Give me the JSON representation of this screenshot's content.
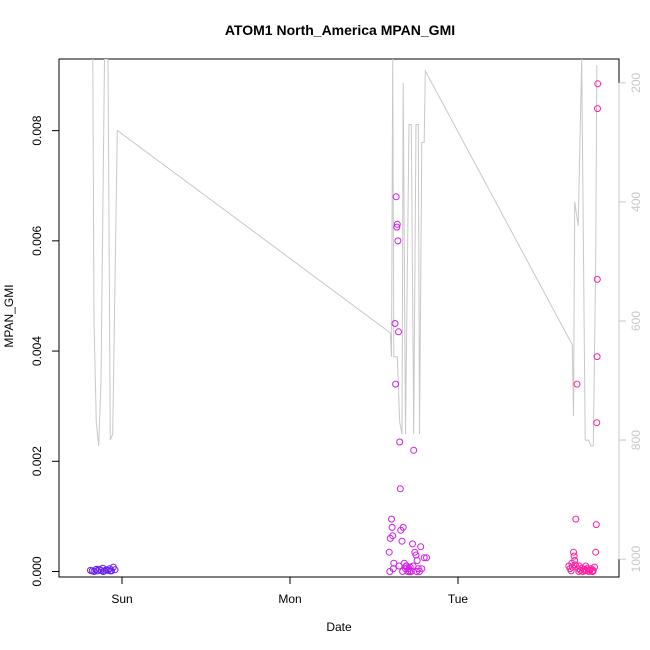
{
  "chart_data": {
    "type": "scatter",
    "title": "ATOM1 North_America MPAN_GMI",
    "xlabel": "Date",
    "ylabel": "MPAN_GMI",
    "x_ticks": [
      "Sun",
      "Mon",
      "Tue"
    ],
    "ylim": [
      -0.0001,
      0.0093
    ],
    "y_ticks": [
      "0.000",
      "0.002",
      "0.004",
      "0.006",
      "0.008"
    ],
    "y2_reverse": true,
    "y2lim": [
      1030,
      160
    ],
    "y2_ticks": [
      "200",
      "400",
      "600",
      "800",
      "1000"
    ],
    "grid": false,
    "colors": {
      "axis": "#000000",
      "secondary": "#c8c8c8",
      "line": "#c8c8c8",
      "group1": "#6a1ef0",
      "group2": "#d21ee6",
      "group3": "#ff1ea0"
    },
    "line_series": {
      "name": "",
      "axis": "secondary",
      "points": [
        [
          "Sat 19:50",
          160
        ],
        [
          "Sat 20:00",
          600
        ],
        [
          "Sat 20:20",
          770
        ],
        [
          "Sat 20:40",
          810
        ],
        [
          "Sat 21:00",
          700
        ],
        [
          "Sat 21:30",
          160
        ],
        [
          "Sat 22:00",
          160
        ],
        [
          "Sat 22:20",
          800
        ],
        [
          "Sat 22:40",
          790
        ],
        [
          "Sat 23:20",
          280
        ],
        [
          "Mon 14:20",
          620
        ],
        [
          "Mon 14:30",
          660
        ],
        [
          "Mon 14:40",
          160
        ],
        [
          "Mon 14:50",
          660
        ],
        [
          "Mon 15:20",
          660
        ],
        [
          "Mon 15:40",
          770
        ],
        [
          "Mon 16:00",
          790
        ],
        [
          "Mon 16:10",
          200
        ],
        [
          "Mon 16:30",
          790
        ],
        [
          "Mon 17:00",
          270
        ],
        [
          "Mon 17:20",
          270
        ],
        [
          "Mon 17:40",
          790
        ],
        [
          "Mon 18:00",
          270
        ],
        [
          "Mon 18:20",
          270
        ],
        [
          "Mon 18:30",
          790
        ],
        [
          "Mon 18:50",
          300
        ],
        [
          "Mon 19:10",
          300
        ],
        [
          "Mon 19:20",
          180
        ],
        [
          "Tue 16:20",
          640
        ],
        [
          "Tue 16:30",
          760
        ],
        [
          "Tue 16:40",
          400
        ],
        [
          "Tue 17:10",
          440
        ],
        [
          "Tue 17:40",
          160
        ],
        [
          "Tue 18:10",
          800
        ],
        [
          "Tue 18:40",
          800
        ],
        [
          "Tue 19:00",
          810
        ],
        [
          "Tue 19:20",
          810
        ],
        [
          "Tue 19:40",
          500
        ],
        [
          "Tue 19:50",
          170
        ]
      ]
    },
    "series": [
      {
        "name": "",
        "color": "#6a1ef0",
        "points": [
          [
            "Sat 19:30",
            2e-05
          ],
          [
            "Sat 19:45",
            1e-05
          ],
          [
            "Sat 20:00",
            0.0
          ],
          [
            "Sat 20:15",
            3e-05
          ],
          [
            "Sat 20:30",
            1e-05
          ],
          [
            "Sat 20:45",
            4e-05
          ],
          [
            "Sat 21:00",
            2e-05
          ],
          [
            "Sat 21:15",
            6e-05
          ],
          [
            "Sat 21:30",
            1e-05
          ],
          [
            "Sat 21:45",
            3e-05
          ],
          [
            "Sat 22:00",
            2e-05
          ],
          [
            "Sat 22:15",
            5e-05
          ],
          [
            "Sat 22:30",
            1e-05
          ],
          [
            "Sat 22:45",
            8e-05
          ],
          [
            "Sat 23:00",
            3e-05
          ],
          [
            "Sat 20:20",
            4e-05
          ],
          [
            "Sat 21:20",
            0.0
          ],
          [
            "Sat 22:20",
            1e-05
          ]
        ]
      },
      {
        "name": "",
        "color": "#d21ee6",
        "points": [
          [
            "Mon 14:10",
            0.00035
          ],
          [
            "Mon 14:20",
            0.0006
          ],
          [
            "Mon 14:30",
            0.00095
          ],
          [
            "Mon 14:35",
            0.0008
          ],
          [
            "Mon 14:40",
            0.00065
          ],
          [
            "Mon 14:50",
            0.00015
          ],
          [
            "Mon 15:00",
            0.0045
          ],
          [
            "Mon 15:05",
            0.0034
          ],
          [
            "Mon 15:10",
            0.0068
          ],
          [
            "Mon 15:15",
            0.00625
          ],
          [
            "Mon 15:20",
            0.0063
          ],
          [
            "Mon 15:25",
            0.006
          ],
          [
            "Mon 15:30",
            0.00435
          ],
          [
            "Mon 15:40",
            0.00235
          ],
          [
            "Mon 15:45",
            0.0015
          ],
          [
            "Mon 15:50",
            0.00075
          ],
          [
            "Mon 16:00",
            0.00055
          ],
          [
            "Mon 16:10",
            0.0008
          ],
          [
            "Mon 16:20",
            0.00015
          ],
          [
            "Mon 16:30",
            5e-05
          ],
          [
            "Mon 16:40",
            0.0001
          ],
          [
            "Mon 16:50",
            0.0
          ],
          [
            "Mon 17:00",
            5e-05
          ],
          [
            "Mon 17:10",
            8e-05
          ],
          [
            "Mon 17:20",
            0.0
          ],
          [
            "Mon 17:30",
            0.0005
          ],
          [
            "Mon 17:40",
            0.0022
          ],
          [
            "Mon 17:50",
            0.00035
          ],
          [
            "Mon 18:00",
            0.0003
          ],
          [
            "Mon 18:10",
            0.0002
          ],
          [
            "Mon 18:20",
            5e-05
          ],
          [
            "Mon 18:30",
            0.0
          ],
          [
            "Mon 18:40",
            0.00045
          ],
          [
            "Mon 18:50",
            5e-05
          ],
          [
            "Mon 19:10",
            0.00025
          ],
          [
            "Mon 19:30",
            0.00025
          ],
          [
            "Mon 14:15",
            0.0
          ],
          [
            "Mon 14:45",
            5e-05
          ],
          [
            "Mon 15:35",
            0.0001
          ],
          [
            "Mon 16:05",
            0.0
          ],
          [
            "Mon 16:35",
            0.0001
          ],
          [
            "Mon 17:05",
            0.0
          ],
          [
            "Mon 17:35",
            0.0001
          ],
          [
            "Mon 18:05",
            0.0
          ]
        ]
      },
      {
        "name": "",
        "color": "#ff1ea0",
        "points": [
          [
            "Tue 15:50",
            0.0001
          ],
          [
            "Tue 16:00",
            5e-05
          ],
          [
            "Tue 16:10",
            1e-05
          ],
          [
            "Tue 16:20",
            8e-05
          ],
          [
            "Tue 16:30",
            0.00035
          ],
          [
            "Tue 16:35",
            0.00028
          ],
          [
            "Tue 16:40",
            0.0002
          ],
          [
            "Tue 16:45",
            0.00012
          ],
          [
            "Tue 16:50",
            0.00095
          ],
          [
            "Tue 17:00",
            0.0034
          ],
          [
            "Tue 17:10",
            5e-05
          ],
          [
            "Tue 17:20",
            0.0001
          ],
          [
            "Tue 17:30",
            2e-05
          ],
          [
            "Tue 17:40",
            6e-05
          ],
          [
            "Tue 17:50",
            0.0
          ],
          [
            "Tue 18:00",
            4e-05
          ],
          [
            "Tue 18:10",
            1e-05
          ],
          [
            "Tue 18:20",
            3e-05
          ],
          [
            "Tue 18:30",
            6e-05
          ],
          [
            "Tue 18:40",
            0.0
          ],
          [
            "Tue 18:50",
            2e-05
          ],
          [
            "Tue 19:00",
            5e-05
          ],
          [
            "Tue 19:10",
            0.0
          ],
          [
            "Tue 19:20",
            2e-05
          ],
          [
            "Tue 19:30",
            8e-05
          ],
          [
            "Tue 19:40",
            0.00035
          ],
          [
            "Tue 19:45",
            0.00085
          ],
          [
            "Tue 19:50",
            0.0027
          ],
          [
            "Tue 19:52",
            0.0039
          ],
          [
            "Tue 19:54",
            0.0053
          ],
          [
            "Tue 19:56",
            0.0084
          ],
          [
            "Tue 19:58",
            0.00885
          ],
          [
            "Tue 16:15",
            0.00015
          ],
          [
            "Tue 17:15",
            0.0
          ],
          [
            "Tue 18:15",
            0.0001
          ],
          [
            "Tue 19:15",
            0.0
          ]
        ]
      }
    ]
  }
}
